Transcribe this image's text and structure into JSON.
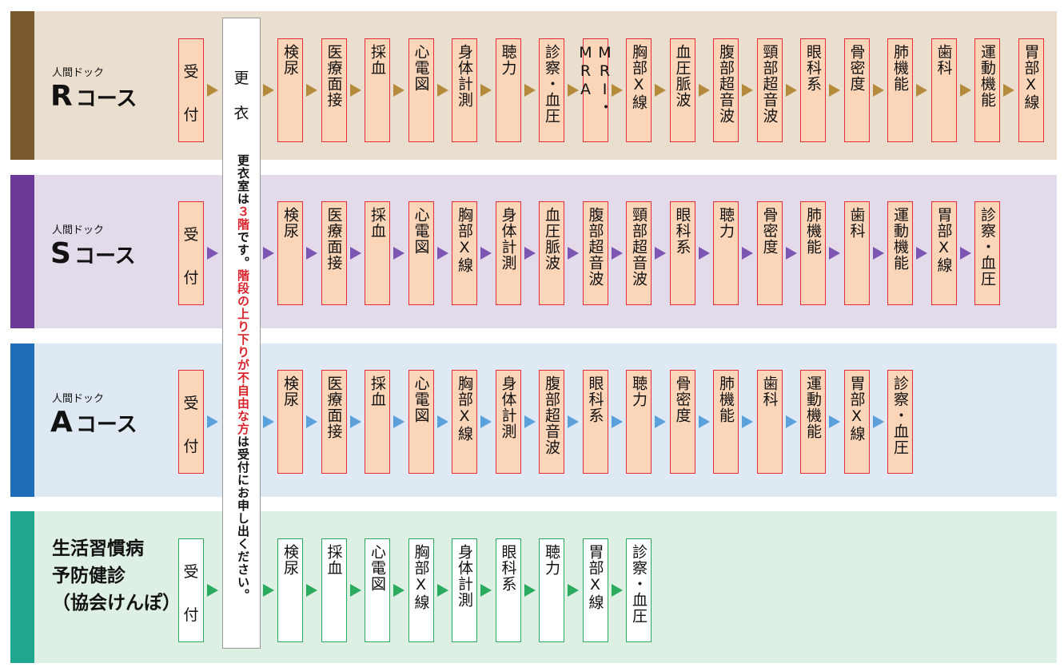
{
  "courses": [
    {
      "id": "R",
      "prefix": "人間ドック",
      "letter": "R",
      "suffix": "コース",
      "colors": {
        "band": "#eadfcf",
        "accent": "#7b5a2e",
        "arrow": "#b58a3c"
      },
      "steps": [
        "検尿",
        "医療面接",
        "採血",
        "心電図",
        "身体計測",
        "聴力",
        "診察・血圧",
        "MRI・MRA",
        "胸部X線",
        "血圧脈波",
        "腹部超音波",
        "頸部超音波",
        "眼科系",
        "骨密度",
        "肺機能",
        "歯科",
        "運動機能",
        "胃部X線"
      ]
    },
    {
      "id": "S",
      "prefix": "人間ドック",
      "letter": "S",
      "suffix": "コース",
      "colors": {
        "band": "#e3daea",
        "accent": "#6b3a98",
        "arrow": "#7d56b3"
      },
      "steps": [
        "検尿",
        "医療面接",
        "採血",
        "心電図",
        "胸部X線",
        "身体計測",
        "血圧脈波",
        "腹部超音波",
        "頸部超音波",
        "眼科系",
        "聴力",
        "骨密度",
        "肺機能",
        "歯科",
        "運動機能",
        "胃部X線",
        "診察・血圧"
      ]
    },
    {
      "id": "A",
      "prefix": "人間ドック",
      "letter": "A",
      "suffix": "コース",
      "colors": {
        "band": "#dfe9f4",
        "accent": "#1f6fb8",
        "arrow": "#5aa0db"
      },
      "steps": [
        "検尿",
        "医療面接",
        "採血",
        "心電図",
        "胸部X線",
        "身体計測",
        "腹部超音波",
        "眼科系",
        "聴力",
        "骨密度",
        "肺機能",
        "歯科",
        "運動機能",
        "胃部X線",
        "診察・血圧"
      ]
    },
    {
      "id": "L",
      "title_lines": [
        "生活習慣病",
        "予防健診",
        "（協会けんぽ）"
      ],
      "colors": {
        "band": "#def0e3",
        "accent": "#1fa68e",
        "arrow": "#2bab5e"
      },
      "steps": [
        "検尿",
        "採血",
        "心電図",
        "胸部X線",
        "身体計測",
        "眼科系",
        "聴力",
        "胃部X線",
        "診察・血圧"
      ]
    }
  ],
  "reception": {
    "ch1": "受",
    "ch2": "付"
  },
  "changing": {
    "ch1": "更",
    "ch2": "衣",
    "note_parts": [
      {
        "text": "更衣室は",
        "red": false
      },
      {
        "text": "３階",
        "red": true
      },
      {
        "text": "です。",
        "red": false
      },
      {
        "text": "階段の上り下りが不自由な方",
        "red": true
      },
      {
        "text": "は受付にお申し出ください。",
        "red": false
      }
    ]
  }
}
